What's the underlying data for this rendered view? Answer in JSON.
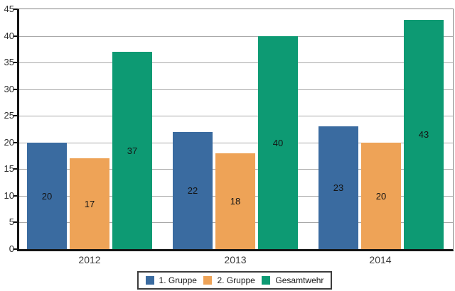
{
  "chart_data": {
    "type": "bar",
    "title": "",
    "categories": [
      "2012",
      "2013",
      "2014"
    ],
    "series": [
      {
        "name": "1. Gruppe",
        "color": "#3A6BA0",
        "values": [
          20,
          22,
          23
        ]
      },
      {
        "name": "2. Gruppe",
        "color": "#EEA357",
        "values": [
          17,
          18,
          20
        ]
      },
      {
        "name": "Gesamtwehr",
        "color": "#0D9A73",
        "values": [
          37,
          40,
          43
        ]
      }
    ],
    "ylim": [
      0,
      45
    ],
    "ytick_step": 5,
    "ytick_labels": [
      "0",
      "5",
      "10",
      "15",
      "20",
      "25",
      "30",
      "35",
      "40",
      "45"
    ],
    "grid": true,
    "legend_position": "bottom",
    "value_labels": "center"
  },
  "colors": {
    "axis": "#141414",
    "gridline": "#a9a9a9",
    "plot_border": "#828282",
    "value_label_text": "#141414",
    "axis_label_text": "#3a3a3a",
    "background": "#ffffff"
  }
}
